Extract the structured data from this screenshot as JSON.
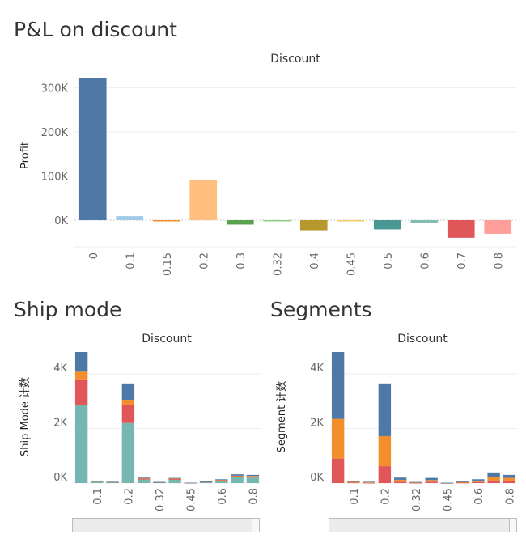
{
  "sections": {
    "pl_title": "P&L on discount",
    "ship_title": "Ship mode",
    "segments_title": "Segments"
  },
  "chart_data": [
    {
      "type": "bar",
      "title": "Discount",
      "ylabel": "Profit",
      "categories": [
        "0",
        "0.1",
        "0.15",
        "0.2",
        "0.3",
        "0.32",
        "0.4",
        "0.45",
        "0.5",
        "0.6",
        "0.7",
        "0.8"
      ],
      "values": [
        321000,
        9000,
        -2000,
        90000,
        -10000,
        -2300,
        -23000,
        -2500,
        -21000,
        -6000,
        -40000,
        -31000
      ],
      "colors": [
        "#4e79a7",
        "#a0cbe8",
        "#f28e2b",
        "#ffbe7d",
        "#59a14f",
        "#8cd17d",
        "#b6992d",
        "#f1ce63",
        "#499894",
        "#86bcb6",
        "#e15759",
        "#ff9d9a"
      ],
      "yticks": [
        0,
        100000,
        200000,
        300000
      ],
      "ytick_labels": [
        "0K",
        "100K",
        "200K",
        "300K"
      ],
      "ylim": [
        -60000,
        330000
      ]
    },
    {
      "type": "bar",
      "title": "Discount",
      "ylabel": "Ship Mode 计数",
      "stacked": true,
      "categories": [
        "0",
        "0.1",
        "0.15",
        "0.2",
        "0.3",
        "0.32",
        "0.4",
        "0.45",
        "0.5",
        "0.6",
        "0.7",
        "0.8"
      ],
      "xtick_labels_shown": [
        "0.1",
        "0.2",
        "0.32",
        "0.45",
        "0.6",
        "0.8"
      ],
      "series": [
        {
          "color": "#76b7b2",
          "values": [
            2850,
            60,
            30,
            2200,
            130,
            30,
            120,
            10,
            40,
            90,
            210,
            200
          ]
        },
        {
          "color": "#e15759",
          "values": [
            950,
            15,
            10,
            650,
            40,
            5,
            40,
            2,
            10,
            25,
            45,
            45
          ]
        },
        {
          "color": "#f28e2b",
          "values": [
            280,
            5,
            3,
            200,
            10,
            2,
            10,
            1,
            3,
            8,
            15,
            15
          ]
        },
        {
          "color": "#4e79a7",
          "values": [
            720,
            10,
            5,
            600,
            20,
            3,
            20,
            1,
            7,
            17,
            50,
            40
          ]
        }
      ],
      "yticks": [
        0,
        2000,
        4000
      ],
      "ytick_labels": [
        "0K",
        "2K",
        "4K"
      ],
      "ylim": [
        0,
        4800
      ]
    },
    {
      "type": "bar",
      "title": "Discount",
      "ylabel": "Segment 计数",
      "stacked": true,
      "categories": [
        "0",
        "0.1",
        "0.15",
        "0.2",
        "0.3",
        "0.32",
        "0.4",
        "0.45",
        "0.5",
        "0.6",
        "0.7",
        "0.8"
      ],
      "xtick_labels_shown": [
        "0.1",
        "0.2",
        "0.32",
        "0.45",
        "0.6",
        "0.8"
      ],
      "series": [
        {
          "color": "#e15759",
          "values": [
            900,
            20,
            10,
            620,
            50,
            10,
            50,
            3,
            15,
            40,
            100,
            80
          ]
        },
        {
          "color": "#f28e2b",
          "values": [
            1450,
            25,
            15,
            1100,
            70,
            12,
            60,
            4,
            20,
            50,
            120,
            110
          ]
        },
        {
          "color": "#4e79a7",
          "values": [
            2450,
            45,
            23,
            1930,
            80,
            18,
            80,
            6,
            25,
            50,
            170,
            110
          ]
        }
      ],
      "yticks": [
        0,
        2000,
        4000
      ],
      "ytick_labels": [
        "0K",
        "2K",
        "4K"
      ],
      "ylim": [
        0,
        4800
      ]
    }
  ]
}
